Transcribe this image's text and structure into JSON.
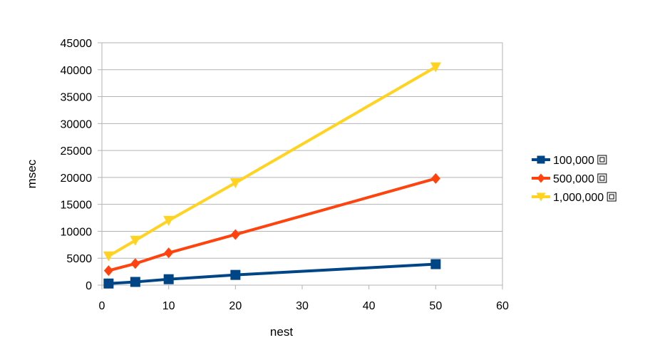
{
  "chart_data": {
    "type": "line",
    "title": "",
    "xlabel": "nest",
    "ylabel": "msec",
    "x": [
      1,
      5,
      10,
      20,
      50
    ],
    "xlim": [
      0,
      60
    ],
    "ylim": [
      0,
      45000
    ],
    "xticks": [
      0,
      10,
      20,
      30,
      40,
      50,
      60
    ],
    "yticks": [
      0,
      5000,
      10000,
      15000,
      20000,
      25000,
      30000,
      35000,
      40000,
      45000
    ],
    "grid": "horizontal",
    "legend_position": "right",
    "series": [
      {
        "name": "100,000",
        "suffix": "⧈",
        "color": "#004586",
        "marker": "square",
        "values": [
          300,
          600,
          1100,
          1900,
          3900
        ]
      },
      {
        "name": "500,000",
        "suffix": "⧈",
        "color": "#ff420e",
        "marker": "diamond",
        "values": [
          2700,
          4000,
          6000,
          9400,
          19800
        ]
      },
      {
        "name": "1,000,000",
        "suffix": "⧈",
        "color": "#ffd320",
        "marker": "triangle-down",
        "values": [
          5400,
          8300,
          12000,
          19000,
          40500
        ]
      }
    ]
  }
}
